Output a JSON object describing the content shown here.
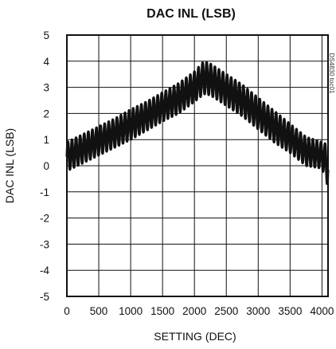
{
  "chart_data": {
    "type": "line",
    "title": "DAC INL (LSB)",
    "xlabel": "SETTING (DEC)",
    "ylabel": "DAC INL (LSB)",
    "xlim": [
      0,
      4095
    ],
    "ylim": [
      -5,
      5
    ],
    "x_ticks": [
      0,
      500,
      1000,
      1500,
      2000,
      2500,
      3000,
      3500,
      4000
    ],
    "y_ticks": [
      5,
      4,
      3,
      2,
      1,
      0,
      -1,
      -2,
      -3,
      -4,
      -5
    ],
    "grid": true,
    "annotation": "DS4830 toc01",
    "series": [
      {
        "x": [
          0,
          250,
          500,
          750,
          1000,
          1250,
          1500,
          1750,
          2000,
          2150,
          2250,
          2500,
          2750,
          3000,
          3250,
          3500,
          3750,
          4000,
          4095
        ],
        "envelope_min": [
          -0.2,
          0.1,
          0.4,
          0.7,
          1.0,
          1.35,
          1.7,
          2.0,
          2.45,
          2.75,
          2.7,
          2.3,
          1.9,
          1.4,
          0.9,
          0.5,
          0.0,
          -0.1,
          -0.8
        ],
        "envelope_max": [
          0.9,
          1.2,
          1.5,
          1.8,
          2.15,
          2.45,
          2.8,
          3.15,
          3.6,
          4.0,
          3.9,
          3.5,
          3.1,
          2.6,
          2.1,
          1.6,
          1.1,
          0.9,
          0.8
        ],
        "color": "#111111"
      }
    ]
  }
}
